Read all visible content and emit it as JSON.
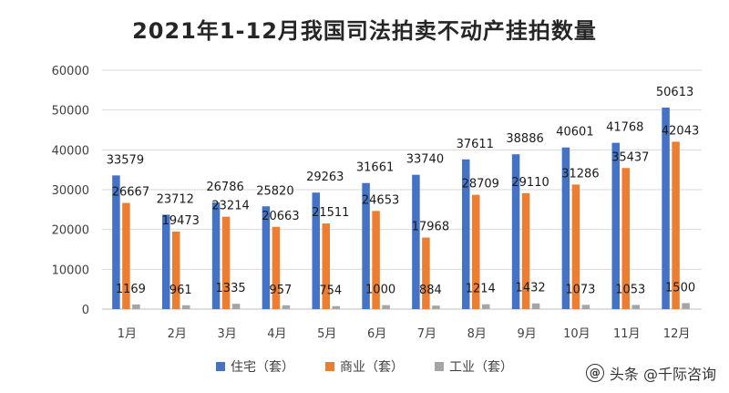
{
  "chart_data": {
    "type": "bar",
    "title": "2021年1-12月我国司法拍卖不动产挂拍数量",
    "categories": [
      "1月",
      "2月",
      "3月",
      "4月",
      "5月",
      "6月",
      "7月",
      "8月",
      "9月",
      "10月",
      "11月",
      "12月"
    ],
    "series": [
      {
        "name": "住宅（套）",
        "color": "#4472C4",
        "values": [
          33579,
          23712,
          26786,
          25820,
          29263,
          31661,
          33740,
          37611,
          38886,
          40601,
          41768,
          50613
        ]
      },
      {
        "name": "商业（套）",
        "color": "#ED7D31",
        "values": [
          26667,
          19473,
          23214,
          20663,
          21511,
          24653,
          17968,
          28709,
          29110,
          31286,
          35437,
          42043
        ]
      },
      {
        "name": "工业（套）",
        "color": "#A5A5A5",
        "values": [
          1169,
          961,
          1335,
          957,
          754,
          1000,
          884,
          1214,
          1432,
          1073,
          1053,
          1500
        ]
      }
    ],
    "ylim": [
      0,
      60000
    ],
    "yticks": [
      0,
      10000,
      20000,
      30000,
      40000,
      50000,
      60000
    ],
    "grid": true,
    "legend_position": "bottom"
  },
  "watermark": {
    "icon": "@",
    "text": "头条 @千际咨询"
  }
}
